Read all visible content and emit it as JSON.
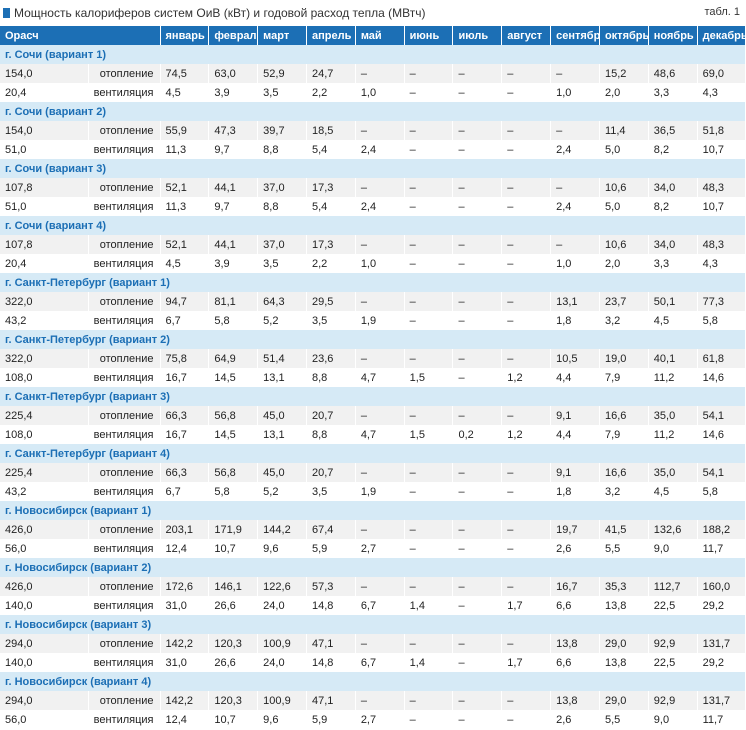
{
  "header": {
    "title": "Мощность калориферов систем ОиВ (кВт) и годовой расход тепла (МВтч)",
    "table_label": "табл. 1"
  },
  "table": {
    "columns": [
      "Орасч",
      "январь",
      "февраль",
      "март",
      "апрель",
      "май",
      "июнь",
      "июль",
      "август",
      "сентябрь",
      "октябрь",
      "ноябрь",
      "декабрь"
    ],
    "groups": [
      {
        "title": "г. Сочи (вариант 1)",
        "rows": [
          [
            "154,0",
            "отопление",
            "74,5",
            "63,0",
            "52,9",
            "24,7",
            "–",
            "–",
            "–",
            "–",
            "–",
            "15,2",
            "48,6",
            "69,0"
          ],
          [
            "20,4",
            "вентиляция",
            "4,5",
            "3,9",
            "3,5",
            "2,2",
            "1,0",
            "–",
            "–",
            "–",
            "1,0",
            "2,0",
            "3,3",
            "4,3"
          ]
        ]
      },
      {
        "title": "г. Сочи (вариант 2)",
        "rows": [
          [
            "154,0",
            "отопление",
            "55,9",
            "47,3",
            "39,7",
            "18,5",
            "–",
            "–",
            "–",
            "–",
            "–",
            "11,4",
            "36,5",
            "51,8"
          ],
          [
            "51,0",
            "вентиляция",
            "11,3",
            "9,7",
            "8,8",
            "5,4",
            "2,4",
            "–",
            "–",
            "–",
            "2,4",
            "5,0",
            "8,2",
            "10,7"
          ]
        ]
      },
      {
        "title": "г. Сочи (вариант 3)",
        "rows": [
          [
            "107,8",
            "отопление",
            "52,1",
            "44,1",
            "37,0",
            "17,3",
            "–",
            "–",
            "–",
            "–",
            "–",
            "10,6",
            "34,0",
            "48,3"
          ],
          [
            "51,0",
            "вентиляция",
            "11,3",
            "9,7",
            "8,8",
            "5,4",
            "2,4",
            "–",
            "–",
            "–",
            "2,4",
            "5,0",
            "8,2",
            "10,7"
          ]
        ]
      },
      {
        "title": "г. Сочи (вариант 4)",
        "rows": [
          [
            "107,8",
            "отопление",
            "52,1",
            "44,1",
            "37,0",
            "17,3",
            "–",
            "–",
            "–",
            "–",
            "–",
            "10,6",
            "34,0",
            "48,3"
          ],
          [
            "20,4",
            "вентиляция",
            "4,5",
            "3,9",
            "3,5",
            "2,2",
            "1,0",
            "–",
            "–",
            "–",
            "1,0",
            "2,0",
            "3,3",
            "4,3"
          ]
        ]
      },
      {
        "title": "г. Санкт-Петербург (вариант 1)",
        "rows": [
          [
            "322,0",
            "отопление",
            "94,7",
            "81,1",
            "64,3",
            "29,5",
            "–",
            "–",
            "–",
            "–",
            "13,1",
            "23,7",
            "50,1",
            "77,3"
          ],
          [
            "43,2",
            "вентиляция",
            "6,7",
            "5,8",
            "5,2",
            "3,5",
            "1,9",
            "–",
            "–",
            "–",
            "1,8",
            "3,2",
            "4,5",
            "5,8"
          ]
        ]
      },
      {
        "title": "г. Санкт-Петербург (вариант 2)",
        "rows": [
          [
            "322,0",
            "отопление",
            "75,8",
            "64,9",
            "51,4",
            "23,6",
            "–",
            "–",
            "–",
            "–",
            "10,5",
            "19,0",
            "40,1",
            "61,8"
          ],
          [
            "108,0",
            "вентиляция",
            "16,7",
            "14,5",
            "13,1",
            "8,8",
            "4,7",
            "1,5",
            "–",
            "1,2",
            "4,4",
            "7,9",
            "11,2",
            "14,6"
          ]
        ]
      },
      {
        "title": "г. Санкт-Петербург (вариант 3)",
        "rows": [
          [
            "225,4",
            "отопление",
            "66,3",
            "56,8",
            "45,0",
            "20,7",
            "–",
            "–",
            "–",
            "–",
            "9,1",
            "16,6",
            "35,0",
            "54,1"
          ],
          [
            "108,0",
            "вентиляция",
            "16,7",
            "14,5",
            "13,1",
            "8,8",
            "4,7",
            "1,5",
            "0,2",
            "1,2",
            "4,4",
            "7,9",
            "11,2",
            "14,6"
          ]
        ]
      },
      {
        "title": "г. Санкт-Петербург (вариант 4)",
        "rows": [
          [
            "225,4",
            "отопление",
            "66,3",
            "56,8",
            "45,0",
            "20,7",
            "–",
            "–",
            "–",
            "–",
            "9,1",
            "16,6",
            "35,0",
            "54,1"
          ],
          [
            "43,2",
            "вентиляция",
            "6,7",
            "5,8",
            "5,2",
            "3,5",
            "1,9",
            "–",
            "–",
            "–",
            "1,8",
            "3,2",
            "4,5",
            "5,8"
          ]
        ]
      },
      {
        "title": "г. Новосибирск (вариант 1)",
        "rows": [
          [
            "426,0",
            "отопление",
            "203,1",
            "171,9",
            "144,2",
            "67,4",
            "–",
            "–",
            "–",
            "–",
            "19,7",
            "41,5",
            "132,6",
            "188,2"
          ],
          [
            "56,0",
            "вентиляция",
            "12,4",
            "10,7",
            "9,6",
            "5,9",
            "2,7",
            "–",
            "–",
            "–",
            "2,6",
            "5,5",
            "9,0",
            "11,7"
          ]
        ]
      },
      {
        "title": "г. Новосибирск (вариант 2)",
        "rows": [
          [
            "426,0",
            "отопление",
            "172,6",
            "146,1",
            "122,6",
            "57,3",
            "–",
            "–",
            "–",
            "–",
            "16,7",
            "35,3",
            "112,7",
            "160,0"
          ],
          [
            "140,0",
            "вентиляция",
            "31,0",
            "26,6",
            "24,0",
            "14,8",
            "6,7",
            "1,4",
            "–",
            "1,7",
            "6,6",
            "13,8",
            "22,5",
            "29,2"
          ]
        ]
      },
      {
        "title": "г. Новосибирск (вариант 3)",
        "rows": [
          [
            "294,0",
            "отопление",
            "142,2",
            "120,3",
            "100,9",
            "47,1",
            "–",
            "–",
            "–",
            "–",
            "13,8",
            "29,0",
            "92,9",
            "131,7"
          ],
          [
            "140,0",
            "вентиляция",
            "31,0",
            "26,6",
            "24,0",
            "14,8",
            "6,7",
            "1,4",
            "–",
            "1,7",
            "6,6",
            "13,8",
            "22,5",
            "29,2"
          ]
        ]
      },
      {
        "title": "г. Новосибирск (вариант 4)",
        "rows": [
          [
            "294,0",
            "отопление",
            "142,2",
            "120,3",
            "100,9",
            "47,1",
            "–",
            "–",
            "–",
            "–",
            "13,8",
            "29,0",
            "92,9",
            "131,7"
          ],
          [
            "56,0",
            "вентиляция",
            "12,4",
            "10,7",
            "9,6",
            "5,9",
            "2,7",
            "–",
            "–",
            "–",
            "2,6",
            "5,5",
            "9,0",
            "11,7"
          ]
        ]
      }
    ]
  }
}
